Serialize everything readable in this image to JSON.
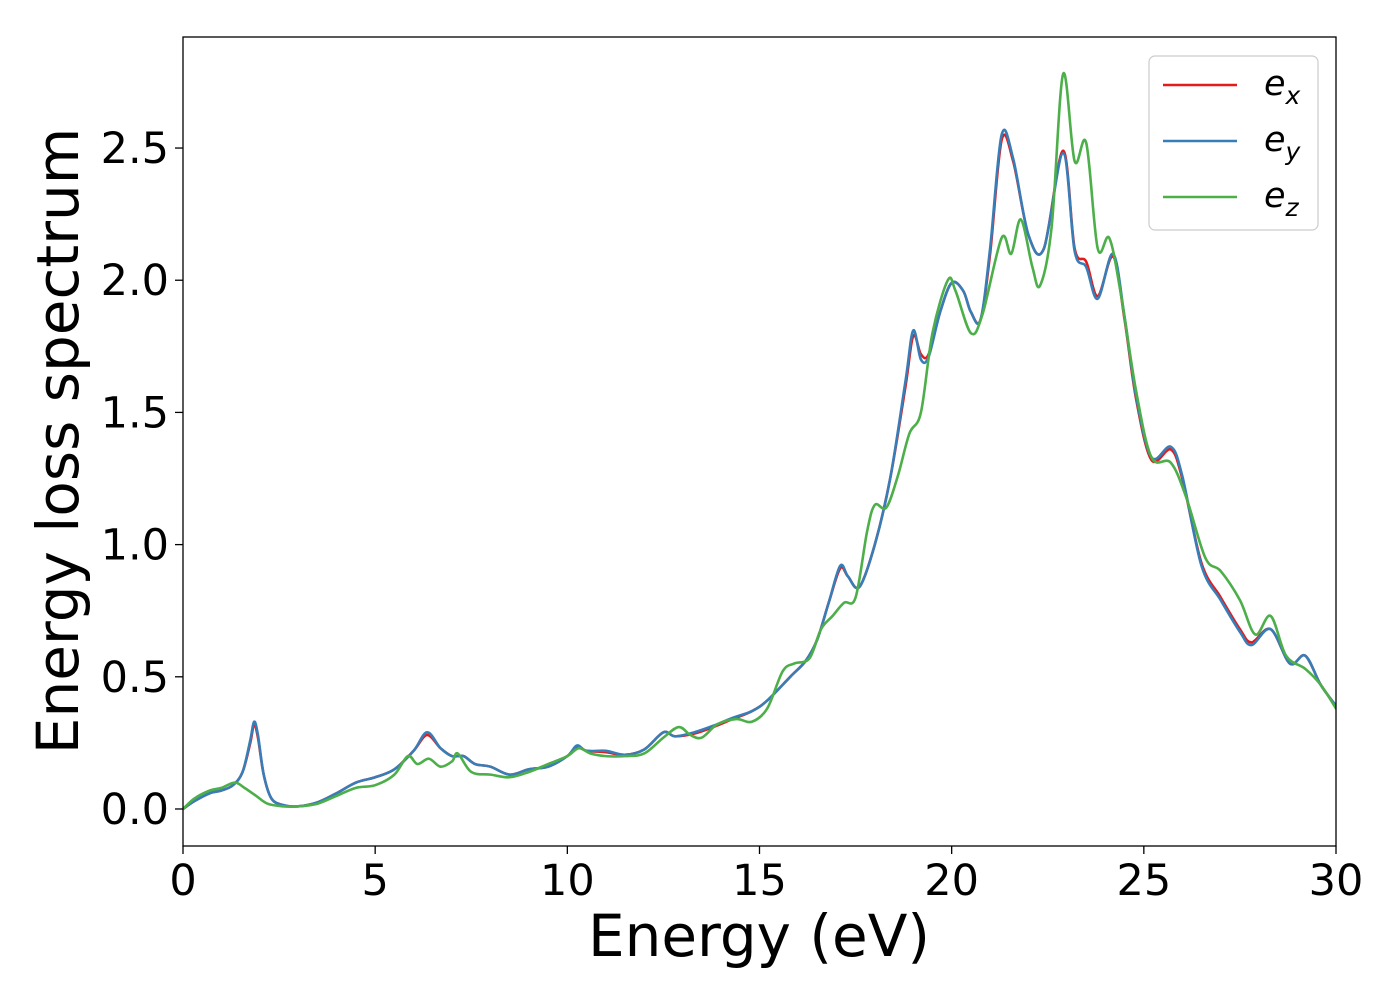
{
  "chart_data": {
    "type": "line",
    "title": "",
    "xlabel": "Energy (eV)",
    "ylabel": "Energy loss spectrum",
    "xlim": [
      0,
      30
    ],
    "ylim": [
      -0.14,
      2.92
    ],
    "xticks": [
      0,
      5,
      10,
      15,
      20,
      25,
      30
    ],
    "xtick_labels": [
      "0",
      "5",
      "10",
      "15",
      "20",
      "25",
      "30"
    ],
    "yticks": [
      0.0,
      0.5,
      1.0,
      1.5,
      2.0,
      2.5
    ],
    "ytick_labels": [
      "0.0",
      "0.5",
      "1.0",
      "1.5",
      "2.0",
      "2.5"
    ],
    "grid": false,
    "legend_position": "top-right",
    "series": [
      {
        "name": "e",
        "name_subscript": "x",
        "color": "#e41a1c",
        "points": [
          [
            0,
            0
          ],
          [
            0.3,
            0.03
          ],
          [
            0.7,
            0.06
          ],
          [
            1.0,
            0.07
          ],
          [
            1.3,
            0.09
          ],
          [
            1.55,
            0.14
          ],
          [
            1.75,
            0.25
          ],
          [
            1.85,
            0.32
          ],
          [
            1.95,
            0.27
          ],
          [
            2.1,
            0.13
          ],
          [
            2.3,
            0.04
          ],
          [
            2.6,
            0.015
          ],
          [
            3.0,
            0.01
          ],
          [
            3.5,
            0.025
          ],
          [
            4.0,
            0.06
          ],
          [
            4.5,
            0.1
          ],
          [
            5.0,
            0.12
          ],
          [
            5.5,
            0.15
          ],
          [
            6.0,
            0.22
          ],
          [
            6.35,
            0.28
          ],
          [
            6.7,
            0.23
          ],
          [
            7.0,
            0.2
          ],
          [
            7.3,
            0.2
          ],
          [
            7.6,
            0.17
          ],
          [
            8.0,
            0.16
          ],
          [
            8.5,
            0.13
          ],
          [
            9.0,
            0.15
          ],
          [
            9.5,
            0.16
          ],
          [
            10.0,
            0.2
          ],
          [
            10.25,
            0.235
          ],
          [
            10.5,
            0.22
          ],
          [
            11.0,
            0.215
          ],
          [
            11.5,
            0.205
          ],
          [
            12.0,
            0.225
          ],
          [
            12.5,
            0.29
          ],
          [
            12.8,
            0.275
          ],
          [
            13.3,
            0.285
          ],
          [
            13.8,
            0.31
          ],
          [
            14.3,
            0.34
          ],
          [
            14.8,
            0.37
          ],
          [
            15.2,
            0.41
          ],
          [
            15.8,
            0.5
          ],
          [
            16.2,
            0.56
          ],
          [
            16.5,
            0.64
          ],
          [
            16.8,
            0.78
          ],
          [
            17.1,
            0.91
          ],
          [
            17.3,
            0.88
          ],
          [
            17.6,
            0.84
          ],
          [
            18.0,
            1.0
          ],
          [
            18.4,
            1.25
          ],
          [
            18.8,
            1.6
          ],
          [
            19.0,
            1.79
          ],
          [
            19.2,
            1.72
          ],
          [
            19.4,
            1.72
          ],
          [
            19.7,
            1.88
          ],
          [
            20.0,
            1.99
          ],
          [
            20.3,
            1.96
          ],
          [
            20.5,
            1.88
          ],
          [
            20.75,
            1.85
          ],
          [
            21.0,
            2.1
          ],
          [
            21.3,
            2.53
          ],
          [
            21.6,
            2.45
          ],
          [
            22.0,
            2.17
          ],
          [
            22.4,
            2.12
          ],
          [
            22.9,
            2.49
          ],
          [
            23.2,
            2.12
          ],
          [
            23.5,
            2.07
          ],
          [
            23.8,
            1.94
          ],
          [
            24.2,
            2.09
          ],
          [
            24.5,
            1.85
          ],
          [
            24.8,
            1.55
          ],
          [
            25.2,
            1.32
          ],
          [
            25.7,
            1.36
          ],
          [
            26.0,
            1.25
          ],
          [
            26.5,
            0.93
          ],
          [
            27.0,
            0.8
          ],
          [
            27.5,
            0.68
          ],
          [
            27.8,
            0.63
          ],
          [
            28.3,
            0.68
          ],
          [
            28.8,
            0.55
          ],
          [
            29.2,
            0.58
          ],
          [
            29.6,
            0.47
          ],
          [
            30.0,
            0.39
          ]
        ]
      },
      {
        "name": "e",
        "name_subscript": "y",
        "color": "#377eb8",
        "points": [
          [
            0,
            0
          ],
          [
            0.3,
            0.03
          ],
          [
            0.7,
            0.06
          ],
          [
            1.0,
            0.07
          ],
          [
            1.3,
            0.09
          ],
          [
            1.55,
            0.14
          ],
          [
            1.75,
            0.26
          ],
          [
            1.85,
            0.33
          ],
          [
            1.95,
            0.28
          ],
          [
            2.1,
            0.13
          ],
          [
            2.3,
            0.04
          ],
          [
            2.6,
            0.015
          ],
          [
            3.0,
            0.01
          ],
          [
            3.5,
            0.025
          ],
          [
            4.0,
            0.06
          ],
          [
            4.5,
            0.1
          ],
          [
            5.0,
            0.12
          ],
          [
            5.5,
            0.15
          ],
          [
            6.0,
            0.22
          ],
          [
            6.35,
            0.29
          ],
          [
            6.7,
            0.23
          ],
          [
            7.0,
            0.2
          ],
          [
            7.3,
            0.2
          ],
          [
            7.6,
            0.17
          ],
          [
            8.0,
            0.16
          ],
          [
            8.5,
            0.13
          ],
          [
            9.0,
            0.15
          ],
          [
            9.5,
            0.16
          ],
          [
            10.0,
            0.2
          ],
          [
            10.25,
            0.24
          ],
          [
            10.5,
            0.22
          ],
          [
            11.0,
            0.22
          ],
          [
            11.5,
            0.205
          ],
          [
            12.0,
            0.225
          ],
          [
            12.5,
            0.29
          ],
          [
            12.8,
            0.275
          ],
          [
            13.3,
            0.29
          ],
          [
            13.8,
            0.315
          ],
          [
            14.3,
            0.345
          ],
          [
            14.8,
            0.37
          ],
          [
            15.2,
            0.41
          ],
          [
            15.8,
            0.5
          ],
          [
            16.2,
            0.56
          ],
          [
            16.5,
            0.64
          ],
          [
            16.8,
            0.78
          ],
          [
            17.1,
            0.92
          ],
          [
            17.3,
            0.88
          ],
          [
            17.6,
            0.84
          ],
          [
            18.0,
            1.0
          ],
          [
            18.4,
            1.25
          ],
          [
            18.8,
            1.62
          ],
          [
            19.0,
            1.81
          ],
          [
            19.2,
            1.7
          ],
          [
            19.4,
            1.71
          ],
          [
            19.7,
            1.88
          ],
          [
            20.0,
            1.99
          ],
          [
            20.3,
            1.96
          ],
          [
            20.5,
            1.88
          ],
          [
            20.75,
            1.85
          ],
          [
            21.0,
            2.12
          ],
          [
            21.3,
            2.55
          ],
          [
            21.6,
            2.46
          ],
          [
            22.0,
            2.17
          ],
          [
            22.4,
            2.12
          ],
          [
            22.9,
            2.48
          ],
          [
            23.2,
            2.11
          ],
          [
            23.5,
            2.05
          ],
          [
            23.8,
            1.93
          ],
          [
            24.2,
            2.1
          ],
          [
            24.5,
            1.86
          ],
          [
            24.8,
            1.56
          ],
          [
            25.2,
            1.33
          ],
          [
            25.7,
            1.37
          ],
          [
            26.0,
            1.26
          ],
          [
            26.5,
            0.92
          ],
          [
            27.0,
            0.79
          ],
          [
            27.5,
            0.67
          ],
          [
            27.8,
            0.62
          ],
          [
            28.3,
            0.68
          ],
          [
            28.8,
            0.55
          ],
          [
            29.2,
            0.58
          ],
          [
            29.6,
            0.47
          ],
          [
            30.0,
            0.39
          ]
        ]
      },
      {
        "name": "e",
        "name_subscript": "z",
        "color": "#4daf4a",
        "points": [
          [
            0,
            0
          ],
          [
            0.3,
            0.04
          ],
          [
            0.7,
            0.07
          ],
          [
            1.0,
            0.08
          ],
          [
            1.35,
            0.1
          ],
          [
            1.6,
            0.08
          ],
          [
            1.9,
            0.05
          ],
          [
            2.2,
            0.02
          ],
          [
            2.6,
            0.01
          ],
          [
            3.0,
            0.01
          ],
          [
            3.5,
            0.02
          ],
          [
            4.0,
            0.05
          ],
          [
            4.5,
            0.08
          ],
          [
            5.0,
            0.09
          ],
          [
            5.5,
            0.13
          ],
          [
            5.85,
            0.2
          ],
          [
            6.1,
            0.17
          ],
          [
            6.4,
            0.19
          ],
          [
            6.7,
            0.16
          ],
          [
            7.0,
            0.18
          ],
          [
            7.15,
            0.21
          ],
          [
            7.5,
            0.14
          ],
          [
            8.0,
            0.13
          ],
          [
            8.5,
            0.12
          ],
          [
            9.0,
            0.14
          ],
          [
            9.5,
            0.17
          ],
          [
            10.0,
            0.2
          ],
          [
            10.3,
            0.23
          ],
          [
            10.6,
            0.21
          ],
          [
            11.0,
            0.2
          ],
          [
            11.5,
            0.2
          ],
          [
            12.0,
            0.21
          ],
          [
            12.5,
            0.27
          ],
          [
            12.9,
            0.31
          ],
          [
            13.2,
            0.28
          ],
          [
            13.5,
            0.27
          ],
          [
            13.9,
            0.32
          ],
          [
            14.4,
            0.34
          ],
          [
            14.8,
            0.33
          ],
          [
            15.2,
            0.38
          ],
          [
            15.6,
            0.52
          ],
          [
            15.9,
            0.55
          ],
          [
            16.3,
            0.57
          ],
          [
            16.6,
            0.68
          ],
          [
            16.9,
            0.73
          ],
          [
            17.2,
            0.78
          ],
          [
            17.5,
            0.8
          ],
          [
            17.8,
            1.05
          ],
          [
            18.0,
            1.15
          ],
          [
            18.3,
            1.14
          ],
          [
            18.6,
            1.26
          ],
          [
            18.9,
            1.42
          ],
          [
            19.2,
            1.5
          ],
          [
            19.5,
            1.8
          ],
          [
            19.9,
            2.0
          ],
          [
            20.1,
            1.96
          ],
          [
            20.5,
            1.8
          ],
          [
            20.8,
            1.87
          ],
          [
            21.3,
            2.16
          ],
          [
            21.55,
            2.1
          ],
          [
            21.8,
            2.23
          ],
          [
            22.1,
            2.05
          ],
          [
            22.3,
            1.98
          ],
          [
            22.6,
            2.2
          ],
          [
            22.9,
            2.78
          ],
          [
            23.2,
            2.45
          ],
          [
            23.5,
            2.52
          ],
          [
            23.8,
            2.12
          ],
          [
            24.1,
            2.16
          ],
          [
            24.4,
            1.95
          ],
          [
            24.8,
            1.58
          ],
          [
            25.2,
            1.33
          ],
          [
            25.7,
            1.31
          ],
          [
            26.1,
            1.18
          ],
          [
            26.6,
            0.95
          ],
          [
            27.0,
            0.9
          ],
          [
            27.5,
            0.79
          ],
          [
            27.9,
            0.66
          ],
          [
            28.3,
            0.73
          ],
          [
            28.7,
            0.58
          ],
          [
            29.2,
            0.53
          ],
          [
            29.6,
            0.47
          ],
          [
            30.0,
            0.38
          ]
        ]
      }
    ]
  }
}
